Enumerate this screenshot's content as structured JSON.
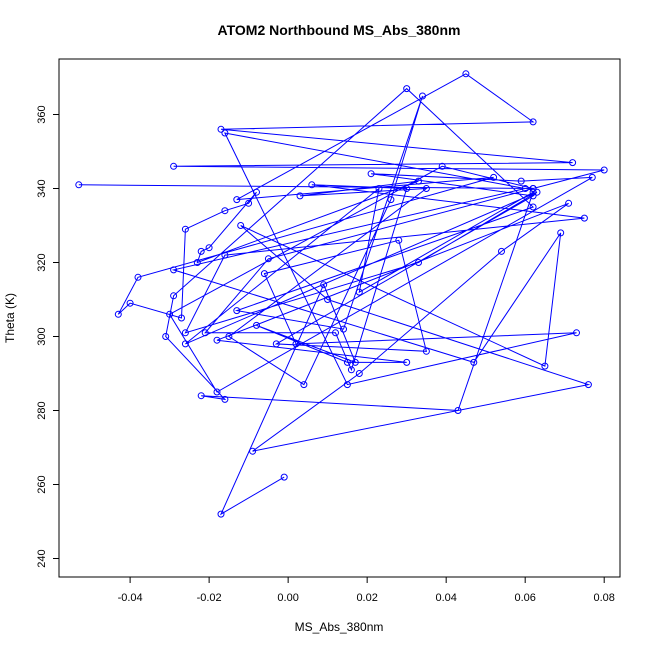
{
  "chart_data": {
    "type": "scatter",
    "mode": "lines+markers",
    "title": "ATOM2 Northbound MS_Abs_380nm",
    "xlabel": "MS_Abs_380nm",
    "ylabel": "Theta (K)",
    "xlim": [
      -0.058,
      0.084
    ],
    "ylim": [
      235,
      375
    ],
    "xticks": [
      -0.04,
      -0.02,
      0.0,
      0.02,
      0.04,
      0.06,
      0.08
    ],
    "xtick_labels": [
      "-0.04",
      "-0.02",
      "0.00",
      "0.02",
      "0.04",
      "0.06",
      "0.08"
    ],
    "yticks": [
      240,
      260,
      280,
      300,
      320,
      340,
      360
    ],
    "ytick_labels": [
      "240",
      "260",
      "280",
      "300",
      "320",
      "340",
      "360"
    ],
    "grid": false,
    "colors": {
      "series": "#0000ff",
      "frame": "#000000"
    },
    "series": [
      {
        "x": [
          -0.053,
          0.062,
          0.08,
          -0.029,
          0.072,
          -0.017,
          0.062,
          0.045,
          -0.013,
          0.052,
          -0.038,
          -0.043,
          -0.04,
          -0.027,
          -0.026,
          -0.016,
          -0.01,
          -0.008,
          -0.02,
          -0.022,
          -0.023,
          0.033,
          0.003,
          0.035,
          -0.015,
          0.004,
          0.026,
          0.034,
          0.014,
          -0.013,
          0.062,
          0.03,
          -0.029,
          -0.031,
          -0.016,
          -0.022,
          0.043,
          0.062,
          0.018,
          0.023,
          -0.026,
          0.063,
          0.033,
          -0.026,
          -0.016,
          0.075,
          0.006,
          0.03,
          0.016,
          0.012,
          -0.021,
          -0.005,
          0.062,
          0.039,
          -0.03,
          -0.018,
          0.077,
          0.059,
          0.021,
          0.062,
          -0.003,
          0.035,
          0.028,
          -0.006,
          0.002,
          0.073,
          0.015,
          -0.016,
          0.06,
          -0.029,
          0.047,
          0.069,
          0.065,
          -0.012,
          0.01,
          0.076,
          -0.009,
          0.018,
          0.054,
          0.071,
          -0.018,
          0.03,
          0.015,
          -0.008,
          0.017,
          0.009,
          -0.017,
          -0.001
        ],
        "y": [
          341,
          340,
          345,
          346,
          347,
          356,
          358,
          371,
          337,
          343,
          316,
          306,
          309,
          305,
          329,
          334,
          336,
          339,
          324,
          323,
          320,
          342,
          338,
          340,
          300,
          287,
          337,
          365,
          302,
          307,
          335,
          367,
          311,
          300,
          283,
          284,
          280,
          339,
          312,
          340,
          298,
          339,
          320,
          301,
          322,
          332,
          341,
          340,
          291,
          301,
          301,
          321,
          340,
          346,
          306,
          285,
          343,
          342,
          344,
          338,
          298,
          296,
          326,
          317,
          298,
          301,
          287,
          355,
          340,
          318,
          293,
          328,
          292,
          330,
          310,
          287,
          269,
          290,
          323,
          336,
          299,
          293,
          293,
          303,
          293,
          314,
          252,
          262
        ]
      }
    ]
  }
}
